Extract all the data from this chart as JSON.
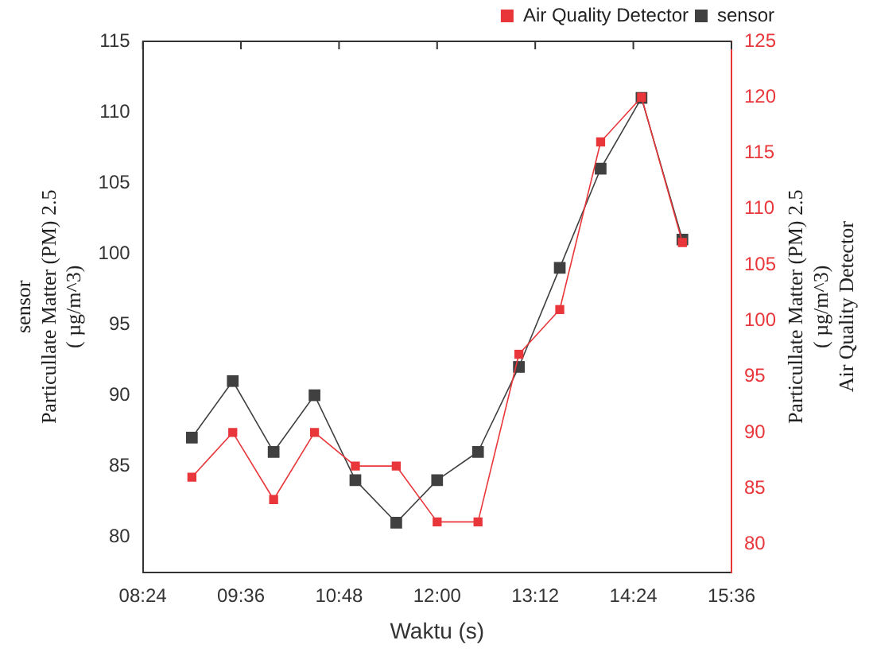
{
  "chart_data": {
    "type": "line",
    "xlabel": "Waktu (s)",
    "ylabel": "sensor\nParticullate Matter (PM) 2.5\n( µg/m^3)",
    "y2label": "Particullate Matter (PM) 2.5\n( µg/m^3)\nAir Quality Detector",
    "x": [
      9.0,
      9.5,
      10.0,
      10.5,
      11.0,
      11.5,
      12.0,
      12.5,
      13.0,
      13.5,
      14.0,
      14.5,
      15.0
    ],
    "series": [
      {
        "name": "sensor",
        "color": "#404040",
        "values": [
          87,
          91,
          86,
          90,
          84,
          81,
          84,
          86,
          92,
          99,
          106,
          111,
          101
        ]
      },
      {
        "name": "Air Quality Detector",
        "color": "#e8363a",
        "axis": "y2",
        "values": [
          86,
          90,
          84,
          90,
          87,
          87,
          82,
          82,
          97,
          101,
          116,
          120,
          107
        ]
      }
    ],
    "xlim": [
      8.4,
      15.6
    ],
    "xticks": [
      {
        "value": 8.4,
        "label": "08:24"
      },
      {
        "value": 9.6,
        "label": "09:36"
      },
      {
        "value": 10.8,
        "label": "10:48"
      },
      {
        "value": 12,
        "label": "12:00"
      },
      {
        "value": 13.2,
        "label": "13:12"
      },
      {
        "value": 14.4,
        "label": "14:24"
      },
      {
        "value": 15.6,
        "label": "15:36"
      }
    ],
    "ylim": [
      77.5,
      115
    ],
    "yticks": [
      80,
      85,
      90,
      95,
      100,
      105,
      110,
      115
    ],
    "y2lim": [
      77.5,
      125
    ],
    "y2ticks": [
      80,
      85,
      90,
      95,
      100,
      105,
      110,
      115,
      120,
      125
    ],
    "grid": false,
    "legend": "top right",
    "marker": "square",
    "line_style": "solid"
  }
}
